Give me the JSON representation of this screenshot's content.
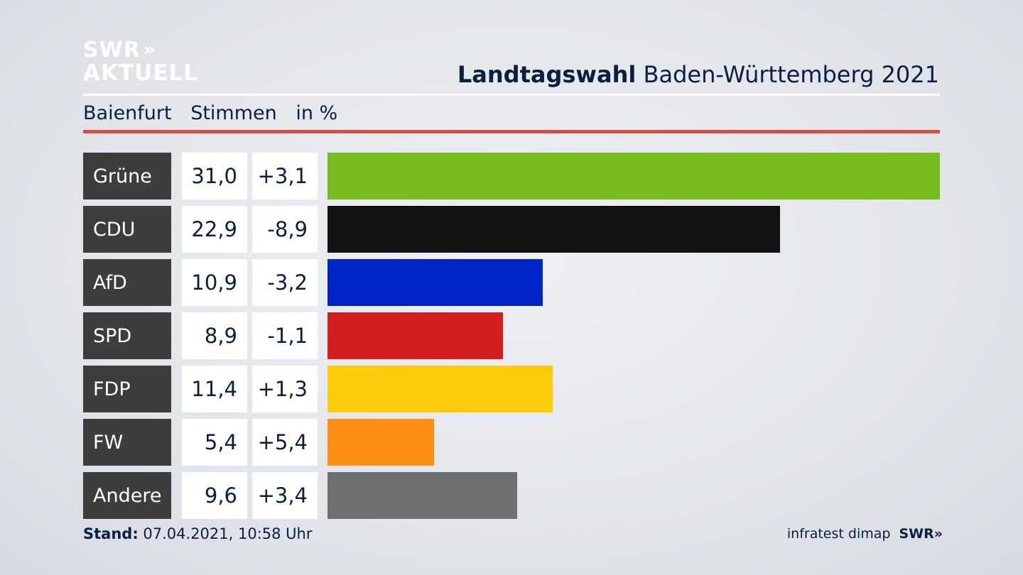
{
  "logo": {
    "line1": "SWR",
    "chevrons": "»",
    "line2": "AKTUELL"
  },
  "header": {
    "title_bold": "Landtagswahl",
    "title_rest": " Baden-Württemberg 2021"
  },
  "subheader": {
    "place": "Baienfurt",
    "metric": "Stimmen",
    "unit": "in %"
  },
  "chart_data": {
    "type": "bar",
    "orientation": "horizontal",
    "categories": [
      "Grüne",
      "CDU",
      "AfD",
      "SPD",
      "FDP",
      "FW",
      "Andere"
    ],
    "values": [
      "31,0",
      "22,9",
      "10,9",
      "8,9",
      "11,4",
      "5,4",
      "9,6"
    ],
    "numeric_values": [
      31.0,
      22.9,
      10.9,
      8.9,
      11.4,
      5.4,
      9.6
    ],
    "changes": [
      "+3,1",
      "-8,9",
      "-3,2",
      "-1,1",
      "+1,3",
      "+5,4",
      "+3,4"
    ],
    "colors": [
      "#77bc1f",
      "#121212",
      "#0024c8",
      "#d51e20",
      "#fecb0a",
      "#fd8f17",
      "#6f7072"
    ],
    "xlim": [
      0,
      31.0
    ]
  },
  "footer": {
    "stand_label": "Stand:",
    "stand_value": " 07.04.2021, 10:58 Uhr",
    "source": "infratest dimap",
    "brand": "SWR",
    "brand_chevrons": "»"
  }
}
